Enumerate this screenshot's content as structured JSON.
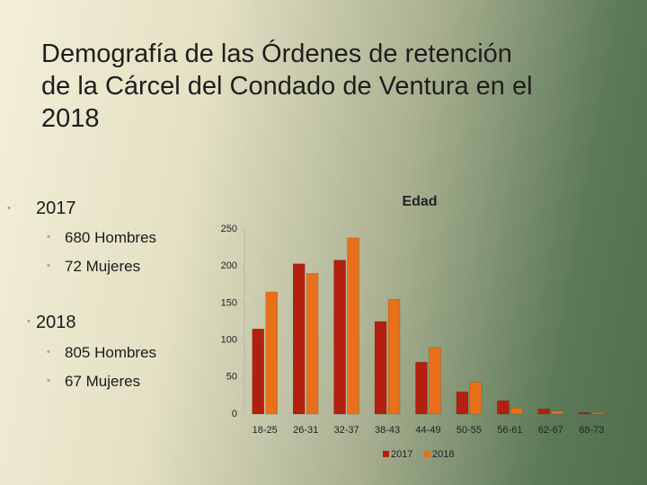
{
  "slide": {
    "title": "Demografía de las Órdenes de retención de la Cárcel del Condado de Ventura en el 2018",
    "bullets": [
      {
        "text": "2017",
        "items": [
          "680 Hombres",
          "72 Mujeres"
        ]
      },
      {
        "text": "2018",
        "items": [
          "805 Hombres",
          "67 Mujeres"
        ]
      }
    ]
  },
  "chart_data": {
    "type": "bar",
    "title": "Edad",
    "categories": [
      "18-25",
      "26-31",
      "32-37",
      "38-43",
      "44-49",
      "50-55",
      "56-61",
      "62-67",
      "68-73"
    ],
    "series": [
      {
        "name": "2017",
        "color": "#b3200f",
        "values": [
          115,
          203,
          208,
          125,
          70,
          30,
          18,
          7,
          2
        ]
      },
      {
        "name": "2018",
        "color": "#e8701a",
        "values": [
          165,
          190,
          238,
          155,
          90,
          43,
          8,
          4,
          2
        ]
      }
    ],
    "ylim": [
      0,
      250
    ],
    "yticks": [
      0,
      50,
      100,
      150,
      200,
      250
    ],
    "legend": "bottom"
  }
}
